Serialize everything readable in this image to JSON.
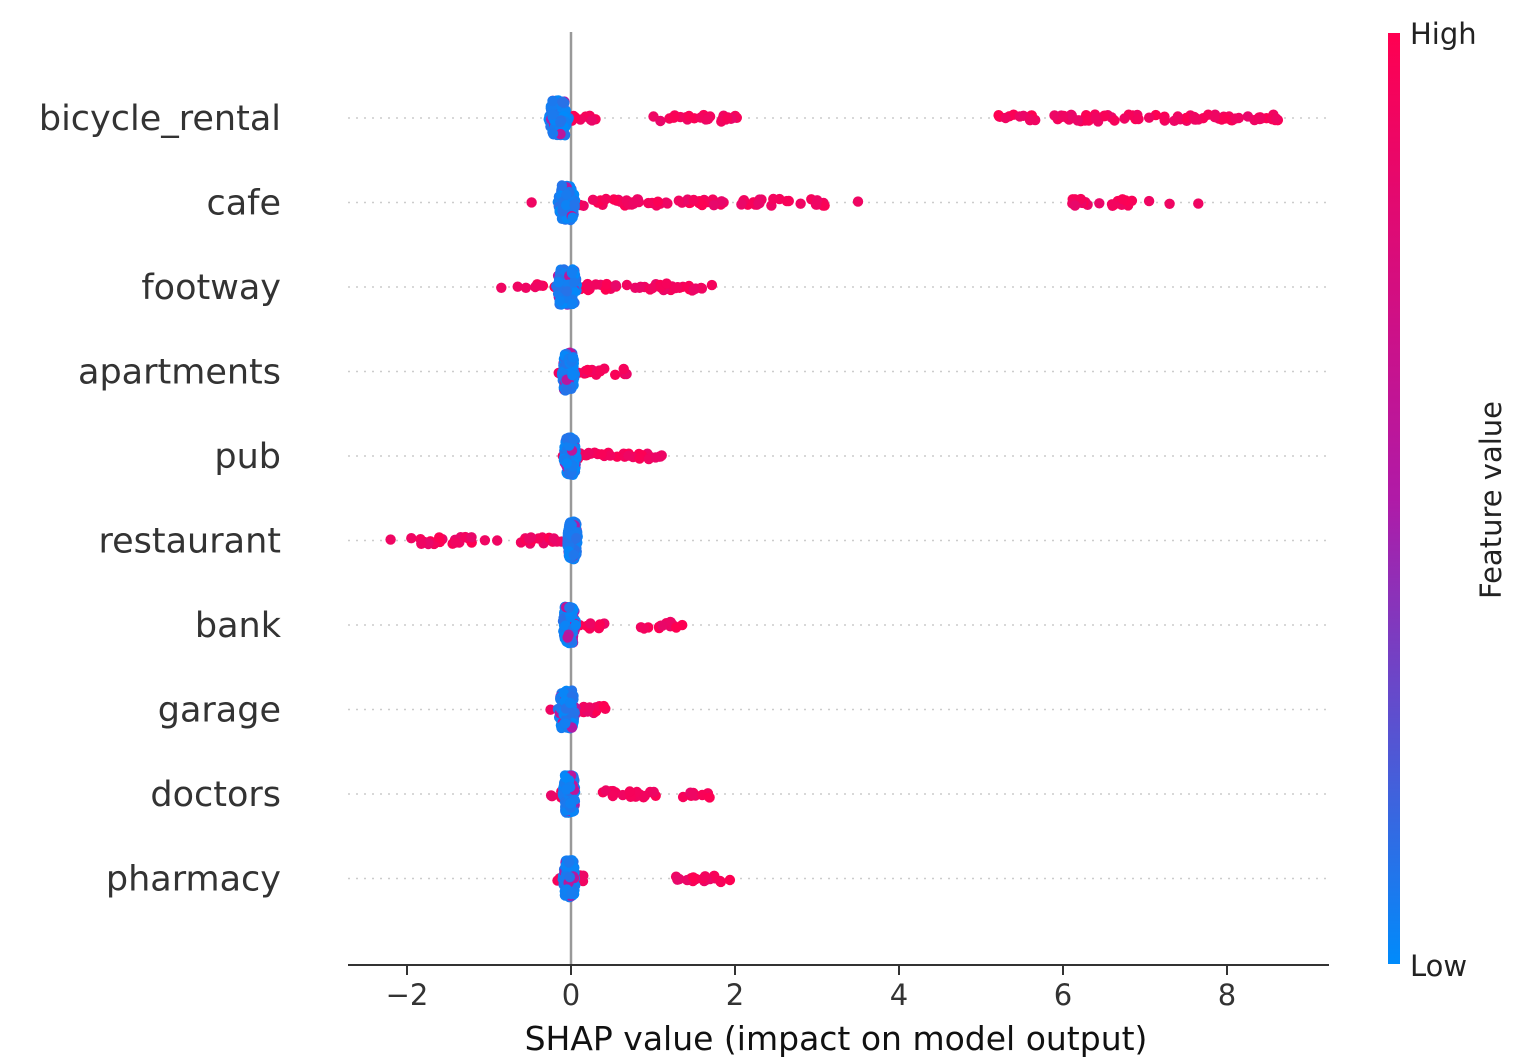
{
  "chart_data": {
    "type": "scatter",
    "subtype": "shap-beeswarm",
    "title": "",
    "xlabel": "SHAP value (impact on model output)",
    "xlim": [
      -2.7,
      9.2
    ],
    "xticks": [
      -2,
      0,
      2,
      4,
      6,
      8
    ],
    "xtick_labels": [
      "−2",
      "0",
      "2",
      "4",
      "6",
      "8"
    ],
    "grid": false,
    "colorbar": {
      "title": "Feature value",
      "high_label": "High",
      "low_label": "Low",
      "high_color": "#ff0051",
      "mid_color": "#b01aa7",
      "low_color": "#008bfb"
    },
    "features": [
      {
        "name": "bicycle_rental",
        "low_center": -0.15,
        "low_spread": 0.09,
        "low_height": 0.42,
        "high": [
          [
            -0.05,
            0.3
          ],
          [
            1.0,
            2.05
          ],
          [
            5.2,
            8.65
          ]
        ],
        "outliers": [
          5.3,
          5.6,
          6.0,
          6.4,
          6.75,
          7.05,
          7.4,
          7.6,
          7.85,
          8.1,
          8.4,
          8.6
        ]
      },
      {
        "name": "cafe",
        "low_center": -0.05,
        "low_spread": 0.08,
        "low_height": 0.42,
        "high": [
          [
            -0.15,
            1.3
          ],
          [
            1.3,
            3.15
          ],
          [
            6.1,
            6.9
          ]
        ],
        "outliers": [
          -0.48,
          3.5,
          7.05,
          7.3,
          7.65
        ]
      },
      {
        "name": "footway",
        "low_center": -0.05,
        "low_spread": 0.1,
        "low_height": 0.42,
        "high": [
          [
            -0.45,
            0.3
          ],
          [
            0.3,
            1.75
          ]
        ],
        "outliers": [
          -0.85,
          -0.65,
          -0.55
        ]
      },
      {
        "name": "apartments",
        "low_center": -0.03,
        "low_spread": 0.06,
        "low_height": 0.45,
        "high": [
          [
            0.0,
            0.7
          ]
        ],
        "outliers": [
          -0.15
        ]
      },
      {
        "name": "pub",
        "low_center": -0.01,
        "low_spread": 0.06,
        "low_height": 0.45,
        "high": [
          [
            0.0,
            1.15
          ]
        ],
        "outliers": [
          -0.1
        ]
      },
      {
        "name": "restaurant",
        "low_center": 0.02,
        "low_spread": 0.05,
        "low_height": 0.45,
        "high": [
          [
            -0.65,
            0.1
          ],
          [
            -1.95,
            -1.15
          ]
        ],
        "outliers": [
          -2.2,
          -1.05,
          -0.9
        ]
      },
      {
        "name": "bank",
        "low_center": -0.02,
        "low_spread": 0.06,
        "low_height": 0.45,
        "high": [
          [
            0.0,
            0.45
          ],
          [
            0.85,
            1.45
          ]
        ],
        "outliers": [
          -0.08
        ]
      },
      {
        "name": "garage",
        "low_center": -0.05,
        "low_spread": 0.08,
        "low_height": 0.45,
        "high": [
          [
            0.0,
            0.45
          ]
        ],
        "outliers": [
          -0.25
        ]
      },
      {
        "name": "doctors",
        "low_center": -0.02,
        "low_spread": 0.06,
        "low_height": 0.45,
        "high": [
          [
            -0.35,
            -0.1
          ],
          [
            0.35,
            1.05
          ],
          [
            1.3,
            1.7
          ]
        ],
        "outliers": []
      },
      {
        "name": "pharmacy",
        "low_center": -0.02,
        "low_spread": 0.06,
        "low_height": 0.45,
        "high": [
          [
            -0.2,
            0.2
          ],
          [
            1.2,
            1.95
          ]
        ],
        "outliers": []
      }
    ]
  }
}
